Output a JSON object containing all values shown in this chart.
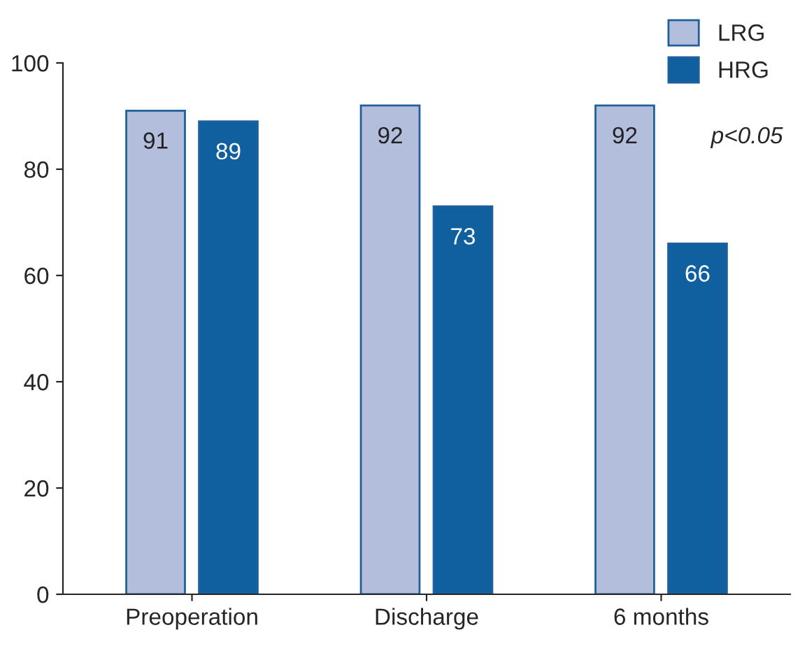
{
  "chart_data": {
    "type": "bar",
    "categories": [
      "Preoperation",
      "Discharge",
      "6 months"
    ],
    "series": [
      {
        "name": "LRG",
        "color": "#b3bedd",
        "values": [
          91,
          92,
          92
        ]
      },
      {
        "name": "HRG",
        "color": "#1060a0",
        "values": [
          89,
          73,
          66
        ]
      }
    ],
    "ylim": [
      0,
      100
    ],
    "yticks": [
      0,
      20,
      40,
      60,
      80,
      100
    ],
    "annotations": [
      "p<0.05"
    ],
    "data_labels": true,
    "legend": "top right",
    "grid": false
  }
}
